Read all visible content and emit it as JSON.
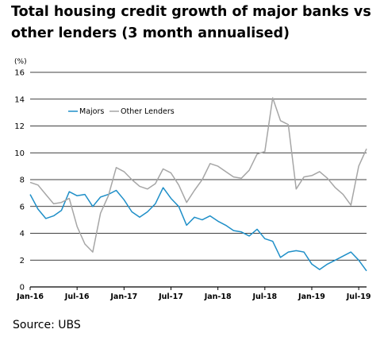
{
  "chart_data": {
    "type": "line",
    "title": "Total housing credit growth of major banks vs other lenders (3 month annualised)",
    "unit_label": "(%)",
    "source": "Source: UBS",
    "ylim": [
      0,
      16
    ],
    "y_ticks": [
      0,
      2,
      4,
      6,
      8,
      10,
      12,
      14,
      16
    ],
    "x_ticks": [
      "Jan-16",
      "Jul-16",
      "Jan-17",
      "Jul-17",
      "Jan-18",
      "Jul-18",
      "Jan-19",
      "Jul-19"
    ],
    "xlim": [
      "2016-01",
      "2019-08"
    ],
    "grid": true,
    "legend_placement": "top-left",
    "series": [
      {
        "name": "Majors",
        "color": "#1f8fc8",
        "x": [
          "2016-01",
          "2016-02",
          "2016-03",
          "2016-04",
          "2016-05",
          "2016-06",
          "2016-07",
          "2016-08",
          "2016-09",
          "2016-10",
          "2016-11",
          "2016-12",
          "2017-01",
          "2017-02",
          "2017-03",
          "2017-04",
          "2017-05",
          "2017-06",
          "2017-07",
          "2017-08",
          "2017-09",
          "2017-10",
          "2017-11",
          "2017-12",
          "2018-01",
          "2018-02",
          "2018-03",
          "2018-04",
          "2018-05",
          "2018-06",
          "2018-07",
          "2018-08",
          "2018-09",
          "2018-10",
          "2018-11",
          "2018-12",
          "2019-01",
          "2019-02",
          "2019-03",
          "2019-04",
          "2019-05",
          "2019-06",
          "2019-07",
          "2019-08"
        ],
        "values": [
          6.9,
          5.8,
          5.1,
          5.3,
          5.7,
          7.1,
          6.8,
          6.9,
          6.0,
          6.7,
          6.9,
          7.2,
          6.5,
          5.6,
          5.2,
          5.6,
          6.2,
          7.4,
          6.6,
          6.0,
          4.6,
          5.2,
          5.0,
          5.3,
          4.9,
          4.6,
          4.2,
          4.1,
          3.8,
          4.3,
          3.6,
          3.4,
          2.2,
          2.6,
          2.7,
          2.6,
          1.7,
          1.3,
          1.7,
          2.0,
          2.3,
          2.6,
          2.0,
          1.2
        ]
      },
      {
        "name": "Other Lenders",
        "color": "#a6a6a6",
        "x": [
          "2016-01",
          "2016-02",
          "2016-03",
          "2016-04",
          "2016-05",
          "2016-06",
          "2016-07",
          "2016-08",
          "2016-09",
          "2016-10",
          "2016-11",
          "2016-12",
          "2017-01",
          "2017-02",
          "2017-03",
          "2017-04",
          "2017-05",
          "2017-06",
          "2017-07",
          "2017-08",
          "2017-09",
          "2017-10",
          "2017-11",
          "2017-12",
          "2018-01",
          "2018-02",
          "2018-03",
          "2018-04",
          "2018-05",
          "2018-06",
          "2018-07",
          "2018-08",
          "2018-09",
          "2018-10",
          "2018-11",
          "2018-12",
          "2019-01",
          "2019-02",
          "2019-03",
          "2019-04",
          "2019-05",
          "2019-06",
          "2019-07",
          "2019-08"
        ],
        "values": [
          7.8,
          7.6,
          6.9,
          6.2,
          6.3,
          6.6,
          4.5,
          3.2,
          2.6,
          5.5,
          6.8,
          8.9,
          8.6,
          8.0,
          7.5,
          7.3,
          7.7,
          8.8,
          8.5,
          7.6,
          6.3,
          7.2,
          8.0,
          9.2,
          9.0,
          8.6,
          8.2,
          8.1,
          8.7,
          9.9,
          10.1,
          14.1,
          12.4,
          12.1,
          7.3,
          8.2,
          8.3,
          8.6,
          8.1,
          7.4,
          6.9,
          6.1,
          9.0,
          10.3
        ]
      }
    ]
  }
}
